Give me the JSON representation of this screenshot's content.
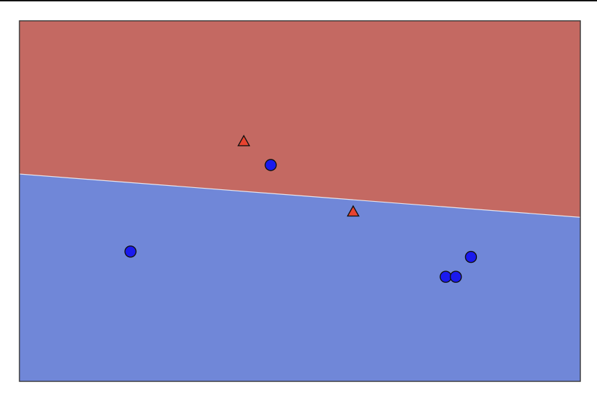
{
  "chart_data": {
    "type": "scatter",
    "title": "",
    "xlabel": "",
    "ylabel": "",
    "grid": false,
    "xlim": [
      0,
      10
    ],
    "ylim": [
      0,
      10
    ],
    "decision_boundary": {
      "description_type": "linear",
      "left": [
        0,
        5.75
      ],
      "right": [
        10,
        4.55
      ]
    },
    "regions": [
      {
        "class": "triangle",
        "color": "#c46962"
      },
      {
        "class": "circle",
        "color": "#7087d8"
      }
    ],
    "series": [
      {
        "marker": "triangle",
        "color": "#e8432f",
        "points": [
          {
            "x": 4.0,
            "y": 6.65
          },
          {
            "x": 5.95,
            "y": 4.7
          }
        ]
      },
      {
        "marker": "circle",
        "color": "#1a1aee",
        "points": [
          {
            "x": 4.48,
            "y": 6.0
          },
          {
            "x": 1.98,
            "y": 3.6
          },
          {
            "x": 7.6,
            "y": 2.9
          },
          {
            "x": 7.78,
            "y": 2.9
          },
          {
            "x": 8.05,
            "y": 3.45
          }
        ]
      }
    ]
  }
}
